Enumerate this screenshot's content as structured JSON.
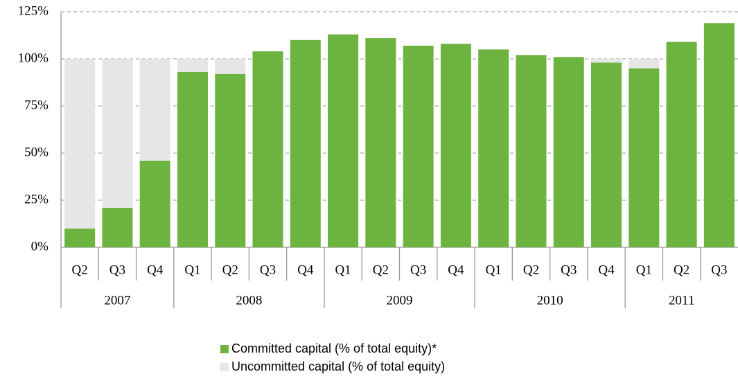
{
  "chart_data": {
    "type": "stacked_bar",
    "groups": [
      {
        "name": "2007",
        "categories": [
          "Q2",
          "Q3",
          "Q4"
        ]
      },
      {
        "name": "2008",
        "categories": [
          "Q1",
          "Q2",
          "Q3",
          "Q4"
        ]
      },
      {
        "name": "2009",
        "categories": [
          "Q1",
          "Q2",
          "Q3",
          "Q4"
        ]
      },
      {
        "name": "2010",
        "categories": [
          "Q1",
          "Q2",
          "Q3",
          "Q4"
        ]
      },
      {
        "name": "2011",
        "categories": [
          "Q1",
          "Q2",
          "Q3"
        ]
      }
    ],
    "series": [
      {
        "name": "Committed capital (% of total equity)*",
        "color": "#6db33f",
        "values": [
          10,
          21,
          46,
          93,
          92,
          104,
          110,
          113,
          111,
          107,
          108,
          105,
          102,
          101,
          98,
          95,
          109,
          119
        ]
      },
      {
        "name": "Uncommitted capital (% of total equity)",
        "color": "#e6e6e6",
        "values": [
          90,
          79,
          54,
          7,
          8,
          0,
          0,
          0,
          0,
          0,
          0,
          0,
          0,
          0,
          2,
          5,
          0,
          0
        ]
      }
    ],
    "ylim": [
      0,
      125
    ],
    "yticks": [
      {
        "value": 0,
        "label": "0%"
      },
      {
        "value": 25,
        "label": "25%"
      },
      {
        "value": 50,
        "label": "50%"
      },
      {
        "value": 75,
        "label": "75%"
      },
      {
        "value": 100,
        "label": "100%"
      },
      {
        "value": 125,
        "label": "125%"
      }
    ],
    "grid": true
  }
}
